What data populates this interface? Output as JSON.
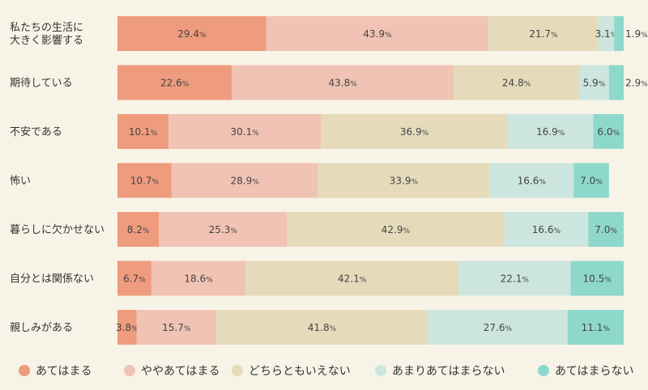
{
  "chart_data": {
    "type": "bar",
    "orientation": "horizontal",
    "stacked": true,
    "normalized": true,
    "categories": [
      [
        "私たちの生活に",
        "大きく影響する"
      ],
      [
        "期待している"
      ],
      [
        "不安である"
      ],
      [
        "怖い"
      ],
      [
        "暮らしに欠かせない"
      ],
      [
        "自分とは関係ない"
      ],
      [
        "親しみがある"
      ]
    ],
    "series": [
      {
        "name": "あてはまる",
        "color": "#ee9b7e",
        "values": [
          29.4,
          22.6,
          10.1,
          10.7,
          8.2,
          6.7,
          3.8
        ]
      },
      {
        "name": "ややあてはまる",
        "color": "#f0c3b4",
        "values": [
          43.9,
          43.8,
          30.1,
          28.9,
          25.3,
          18.6,
          15.7
        ]
      },
      {
        "name": "どちらともいえない",
        "color": "#e5dbbb",
        "values": [
          21.7,
          24.8,
          36.9,
          33.9,
          42.9,
          42.1,
          41.8
        ]
      },
      {
        "name": "あまりあてはまらない",
        "color": "#cce5de",
        "values": [
          3.1,
          5.9,
          16.9,
          16.6,
          16.6,
          22.1,
          27.6
        ]
      },
      {
        "name": "あてはまらない",
        "color": "#8ed8cb",
        "values": [
          1.9,
          2.9,
          6.0,
          7.0,
          7.0,
          10.5,
          11.1
        ]
      }
    ],
    "value_suffix": "%",
    "xlim": [
      0,
      100
    ],
    "grid": false,
    "legend_position": "bottom"
  }
}
